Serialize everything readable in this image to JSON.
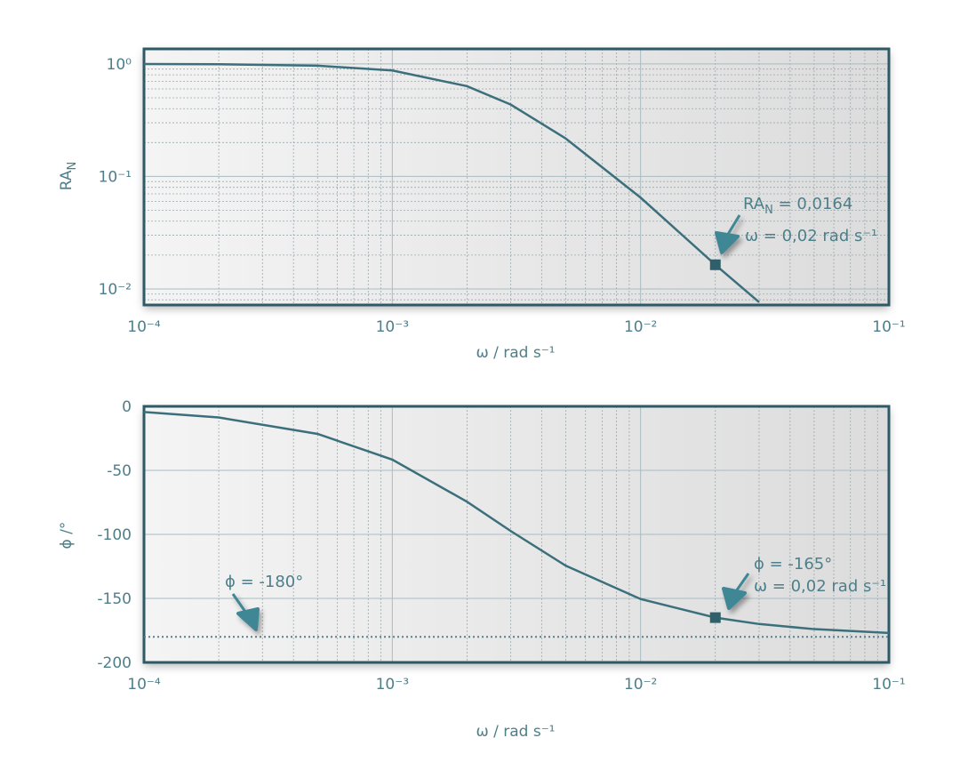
{
  "chart_data": [
    {
      "type": "line",
      "xscale": "log",
      "yscale": "log",
      "ylabel": {
        "text": "RA",
        "subscript": "N"
      },
      "xlabel": "ω / rad s⁻¹",
      "xlim": [
        0.0001,
        0.1
      ],
      "xticks": [
        {
          "value": 0.0001,
          "label": "10⁻⁴"
        },
        {
          "value": 0.001,
          "label": "10⁻³"
        },
        {
          "value": 0.01,
          "label": "10⁻²"
        },
        {
          "value": 0.1,
          "label": "10⁻¹"
        }
      ],
      "ylim": [
        0.0072,
        1.36
      ],
      "yticks": [
        {
          "value": 0.01,
          "label": "10⁻²"
        },
        {
          "value": 0.1,
          "label": "10⁻¹"
        },
        {
          "value": 1,
          "label": "10⁰"
        }
      ],
      "grid": true,
      "minor_grid": true,
      "x": [
        0.0001,
        0.0002,
        0.0005,
        0.001,
        0.002,
        0.003,
        0.005,
        0.01,
        0.02,
        0.03
      ],
      "series": [
        {
          "color": "#3b6f7b",
          "values": [
            0.999,
            0.994,
            0.965,
            0.874,
            0.634,
            0.435,
            0.217,
            0.0648,
            0.0164,
            0.00763
          ]
        }
      ],
      "marker": {
        "x": 0.02,
        "y": 0.0164,
        "color": "#2f5f6a"
      },
      "annotations": [
        {
          "text": "RA",
          "subscript": "N",
          "suffix": " = 0,0164"
        },
        {
          "text": "ω = 0,02  rad s⁻¹"
        }
      ]
    },
    {
      "type": "line",
      "xscale": "log",
      "yscale": "linear",
      "ylabel": "ϕ /°",
      "xlabel": "ω / rad s⁻¹",
      "xlim": [
        0.0001,
        0.1
      ],
      "xticks": [
        {
          "value": 0.0001,
          "label": "10⁻⁴"
        },
        {
          "value": 0.001,
          "label": "10⁻³"
        },
        {
          "value": 0.01,
          "label": "10⁻²"
        },
        {
          "value": 0.1,
          "label": "10⁻¹"
        }
      ],
      "ylim": [
        -200,
        0
      ],
      "yticks": [
        -200,
        -150,
        -100,
        -50,
        0
      ],
      "grid": true,
      "minor_grid": true,
      "x": [
        0.0001,
        0.0002,
        0.0005,
        0.001,
        0.002,
        0.003,
        0.005,
        0.01,
        0.02,
        0.03,
        0.05,
        0.1
      ],
      "series": [
        {
          "color": "#3b6f7b",
          "values": [
            -4.4,
            -8.7,
            -21.5,
            -41.6,
            -74.5,
            -97.4,
            -124.5,
            -150.5,
            -165,
            -170,
            -174,
            -177
          ]
        }
      ],
      "marker": {
        "x": 0.02,
        "y": -165,
        "color": "#2f5f6a"
      },
      "hline": {
        "value": -180,
        "style": "dotted"
      },
      "annotations": [
        {
          "text": "ϕ = -180°"
        },
        {
          "text": "ϕ = -165°"
        },
        {
          "text": "ω = 0,02  rad s⁻¹"
        }
      ]
    }
  ]
}
